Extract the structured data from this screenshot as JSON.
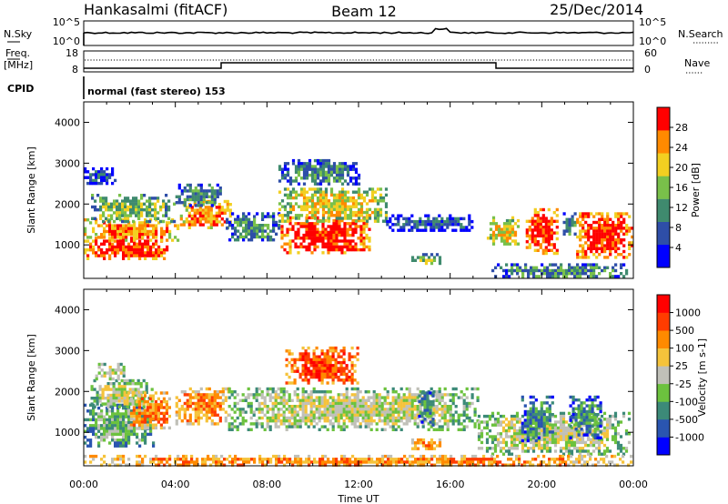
{
  "header": {
    "station": "Hankasalmi (fitACF)",
    "beam": "Beam 12",
    "date": "25/Dec/2014"
  },
  "noise_panel": {
    "left_label": "N.Sky",
    "left_ticks": [
      "10^5",
      "10^0"
    ],
    "right_ticks": [
      "10^5",
      "10^0"
    ],
    "right_label": "N.Search"
  },
  "freq_panel": {
    "left_label_1": "Freq.",
    "left_label_2": "[MHz]",
    "left_ticks": [
      "18",
      "8"
    ],
    "right_ticks": [
      "60",
      "0"
    ],
    "right_label": "Nave"
  },
  "cpid": {
    "label": "CPID",
    "mode": "normal (fast stereo) 153"
  },
  "chart_data": [
    {
      "type": "heatmap",
      "panel": "power",
      "ylabel": "Slant Range [km]",
      "y_ticks": [
        "4000",
        "3000",
        "2000",
        "1000"
      ],
      "ylim": [
        180,
        4500
      ],
      "xlim_hours": [
        0,
        24
      ],
      "colorbar_label": "Power [dB]",
      "colorbar_ticks": [
        "28",
        "24",
        "20",
        "16",
        "12",
        "8",
        "4"
      ],
      "colors": [
        "#0000ff",
        "#2e4ea8",
        "#3f8a6e",
        "#79c04a",
        "#f2cf21",
        "#ff8a00",
        "#ff0000"
      ],
      "echo_regions": [
        {
          "t0": 0.0,
          "t1": 3.6,
          "r0": 700,
          "r1": 1200,
          "level": 6
        },
        {
          "t0": 0.0,
          "t1": 4.1,
          "r0": 1150,
          "r1": 1650,
          "level": 5
        },
        {
          "t0": 0.2,
          "t1": 3.9,
          "r0": 1600,
          "r1": 2250,
          "level": 3
        },
        {
          "t0": 0.0,
          "t1": 1.4,
          "r0": 2500,
          "r1": 2900,
          "level": 1
        },
        {
          "t0": 4.2,
          "t1": 6.4,
          "r0": 1400,
          "r1": 2100,
          "level": 5
        },
        {
          "t0": 4.0,
          "t1": 6.0,
          "r0": 2000,
          "r1": 2500,
          "level": 2
        },
        {
          "t0": 6.2,
          "t1": 8.5,
          "r0": 1100,
          "r1": 1800,
          "level": 2
        },
        {
          "t0": 8.6,
          "t1": 12.5,
          "r0": 800,
          "r1": 1700,
          "level": 6
        },
        {
          "t0": 8.5,
          "t1": 13.2,
          "r0": 1600,
          "r1": 2400,
          "level": 4
        },
        {
          "t0": 8.5,
          "t1": 12.0,
          "r0": 2500,
          "r1": 3100,
          "level": 2
        },
        {
          "t0": 14.3,
          "t1": 15.5,
          "r0": 550,
          "r1": 800,
          "level": 3
        },
        {
          "t0": 13.2,
          "t1": 17.0,
          "r0": 1350,
          "r1": 1750,
          "level": 1
        },
        {
          "t0": 17.6,
          "t1": 19.0,
          "r0": 1000,
          "r1": 1700,
          "level": 4
        },
        {
          "t0": 19.3,
          "t1": 20.7,
          "r0": 800,
          "r1": 1900,
          "level": 6
        },
        {
          "t0": 20.8,
          "t1": 21.5,
          "r0": 1200,
          "r1": 1800,
          "level": 2
        },
        {
          "t0": 21.5,
          "t1": 23.9,
          "r0": 700,
          "r1": 1800,
          "level": 6
        },
        {
          "t0": 17.8,
          "t1": 23.8,
          "r0": 200,
          "r1": 550,
          "level": 2
        }
      ]
    },
    {
      "type": "heatmap",
      "panel": "velocity",
      "ylabel": "Slant Range [km]",
      "y_ticks": [
        "4000",
        "3000",
        "2000",
        "1000"
      ],
      "ylim": [
        180,
        4500
      ],
      "xlim_hours": [
        0,
        24
      ],
      "colorbar_label": "Velocity [m s-1]",
      "colorbar_ticks": [
        "1000",
        "500",
        "100",
        "25",
        "-25",
        "-100",
        "-500",
        "-1000"
      ],
      "colors": [
        "#0000ff",
        "#2a55b0",
        "#3c8a78",
        "#6cc23e",
        "#c0c0b8",
        "#f5c33b",
        "#ff8a00",
        "#ff3c00",
        "#ff0000"
      ],
      "echo_regions": [
        {
          "t0": 0.0,
          "t1": 3.0,
          "r0": 700,
          "r1": 1700,
          "level": 3
        },
        {
          "t0": 0.3,
          "t1": 3.0,
          "r0": 1600,
          "r1": 2300,
          "level": 4
        },
        {
          "t0": 0.5,
          "t1": 1.8,
          "r0": 2300,
          "r1": 2700,
          "level": 4
        },
        {
          "t0": 1.9,
          "t1": 3.8,
          "r0": 1100,
          "r1": 2000,
          "level": 6
        },
        {
          "t0": 4.0,
          "t1": 6.3,
          "r0": 1200,
          "r1": 2100,
          "level": 6
        },
        {
          "t0": 6.3,
          "t1": 17.2,
          "r0": 1100,
          "r1": 2100,
          "level": 4
        },
        {
          "t0": 8.8,
          "t1": 12.0,
          "r0": 2200,
          "r1": 3100,
          "level": 7
        },
        {
          "t0": 14.3,
          "t1": 15.5,
          "r0": 600,
          "r1": 850,
          "level": 6
        },
        {
          "t0": 14.6,
          "t1": 15.3,
          "r0": 1200,
          "r1": 2000,
          "level": 2
        },
        {
          "t0": 17.2,
          "t1": 23.8,
          "r0": 500,
          "r1": 1500,
          "level": 4
        },
        {
          "t0": 19.1,
          "t1": 20.5,
          "r0": 800,
          "r1": 1900,
          "level": 2
        },
        {
          "t0": 21.2,
          "t1": 22.6,
          "r0": 900,
          "r1": 1900,
          "level": 2
        },
        {
          "t0": 0.0,
          "t1": 23.9,
          "r0": 200,
          "r1": 450,
          "level": 6
        }
      ]
    }
  ],
  "x_ticks": [
    "00:00",
    "04:00",
    "08:00",
    "12:00",
    "16:00",
    "20:00",
    "00:00"
  ],
  "xlabel": "Time UT",
  "colors": {
    "background": "#ffffff",
    "axes": "#000000",
    "ground": "#a9a9a4"
  }
}
